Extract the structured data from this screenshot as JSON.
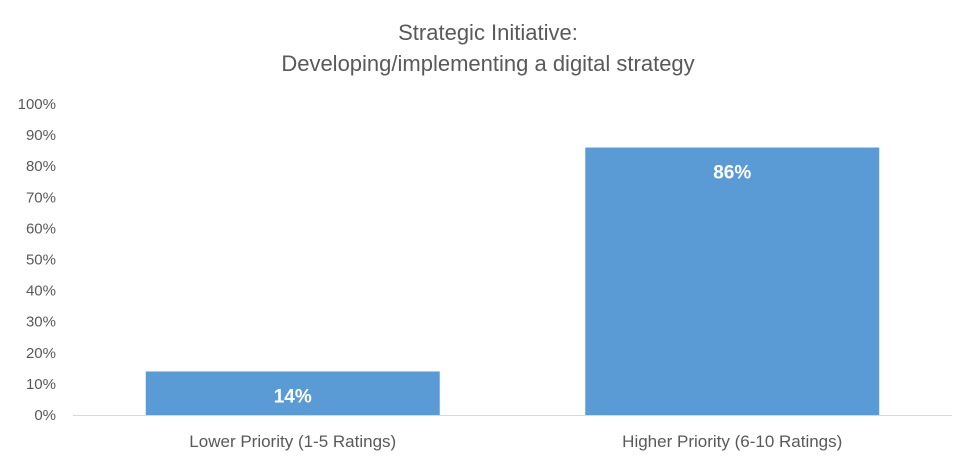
{
  "chart_data": {
    "type": "bar",
    "title": [
      "Strategic Initiative:",
      "Developing/implementing a digital strategy"
    ],
    "categories": [
      "Lower Priority (1-5 Ratings)",
      "Higher Priority (6-10 Ratings)"
    ],
    "values": [
      14,
      86
    ],
    "data_labels": [
      "14%",
      "86%"
    ],
    "ylim": [
      0,
      100
    ],
    "y_ticks": [
      0,
      10,
      20,
      30,
      40,
      50,
      60,
      70,
      80,
      90,
      100
    ],
    "y_tick_labels": [
      "0%",
      "10%",
      "20%",
      "30%",
      "40%",
      "50%",
      "60%",
      "70%",
      "80%",
      "90%",
      "100%"
    ],
    "grid": false,
    "legend": "none",
    "bar_color": "#5b9bd5"
  }
}
